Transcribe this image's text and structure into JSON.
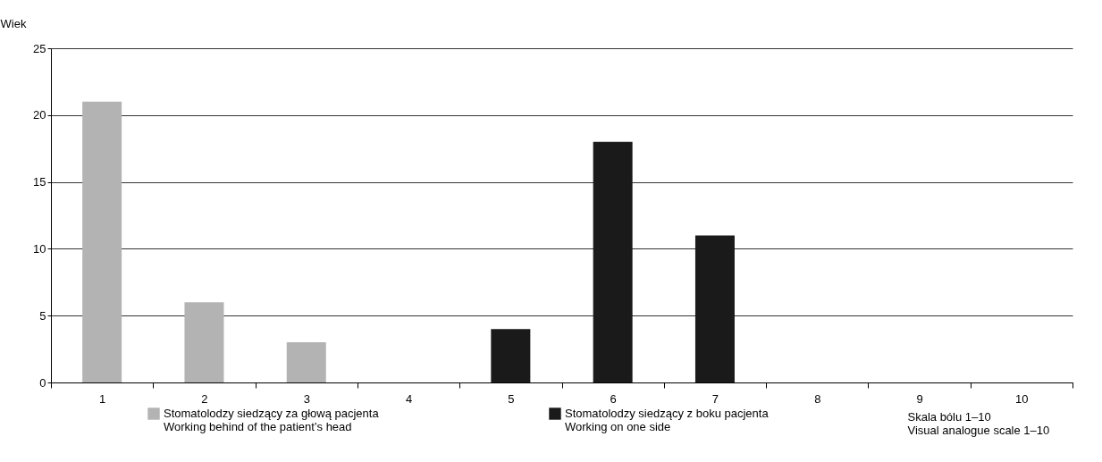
{
  "chart_data": {
    "type": "bar",
    "xlabel": "Skala bólu 1–10\nVisual analogue scale 1–10",
    "ylabel": "Wiek",
    "categories": [
      "1",
      "2",
      "3",
      "4",
      "5",
      "6",
      "7",
      "8",
      "9",
      "10"
    ],
    "series": [
      {
        "name": "Stomatolodzy siedzący za głową pacjenta\nWorking behind of the patient’s head",
        "color": "#b3b3b3",
        "values": [
          21,
          6,
          3,
          null,
          null,
          null,
          null,
          null,
          null,
          null
        ]
      },
      {
        "name": "Stomatolodzy siedzący z boku pacjenta\nWorking on one side",
        "color": "#1a1a1a",
        "values": [
          null,
          null,
          null,
          null,
          4,
          18,
          11,
          null,
          null,
          null
        ]
      }
    ],
    "ylim": [
      0,
      25
    ],
    "yticks": [
      0,
      5,
      10,
      15,
      20,
      25
    ],
    "grid": "y",
    "legend": "bottom"
  }
}
